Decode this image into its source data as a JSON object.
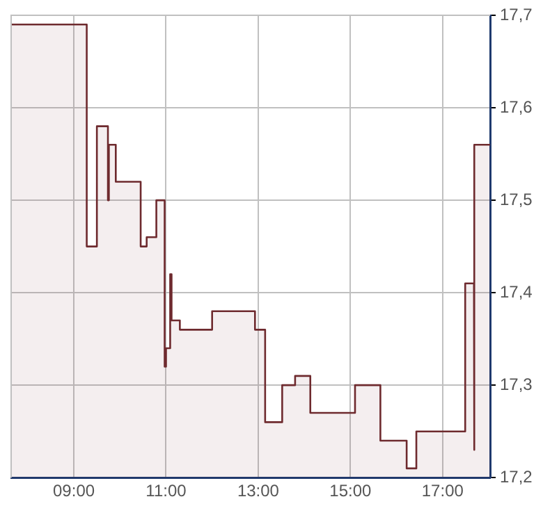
{
  "chart_data": {
    "type": "area",
    "x": [
      7.64,
      9.28,
      9.28,
      9.5,
      9.5,
      9.74,
      9.74,
      9.76,
      9.76,
      9.91,
      9.91,
      10.45,
      10.45,
      10.58,
      10.58,
      10.79,
      10.79,
      10.97,
      10.97,
      11.0,
      11.0,
      11.09,
      11.09,
      11.12,
      11.12,
      11.3,
      11.3,
      12.0,
      12.0,
      12.93,
      12.93,
      13.15,
      13.15,
      13.52,
      13.52,
      13.8,
      13.8,
      14.13,
      14.13,
      15.1,
      15.1,
      15.65,
      15.65,
      16.22,
      16.22,
      16.43,
      16.43,
      17.49,
      17.49,
      17.68,
      17.68,
      17.69,
      17.69,
      18.03
    ],
    "series": [
      {
        "color": "#6e2a2e",
        "values": [
          17.69,
          17.69,
          17.45,
          17.45,
          17.58,
          17.58,
          17.5,
          17.5,
          17.56,
          17.56,
          17.52,
          17.52,
          17.45,
          17.45,
          17.46,
          17.46,
          17.5,
          17.5,
          17.32,
          17.32,
          17.34,
          17.34,
          17.42,
          17.42,
          17.37,
          17.37,
          17.36,
          17.36,
          17.38,
          17.38,
          17.36,
          17.36,
          17.26,
          17.26,
          17.3,
          17.3,
          17.31,
          17.31,
          17.27,
          17.27,
          17.3,
          17.3,
          17.24,
          17.24,
          17.21,
          17.21,
          17.25,
          17.25,
          17.41,
          17.41,
          17.23,
          17.23,
          17.56,
          17.56
        ]
      }
    ],
    "xlim": [
      7.64,
      18.03
    ],
    "xticks": [
      {
        "value": 9,
        "label": "09:00"
      },
      {
        "value": 11,
        "label": "11:00"
      },
      {
        "value": 13,
        "label": "13:00"
      },
      {
        "value": 15,
        "label": "15:00"
      },
      {
        "value": 17,
        "label": "17:00"
      }
    ],
    "ylim": [
      17.2,
      17.7
    ],
    "yticks": [
      {
        "value": 17.2,
        "label": "17,2"
      },
      {
        "value": 17.3,
        "label": "17,3"
      },
      {
        "value": 17.4,
        "label": "17,4"
      },
      {
        "value": 17.5,
        "label": "17,5"
      },
      {
        "value": 17.6,
        "label": "17,6"
      },
      {
        "value": 17.7,
        "label": "17,7"
      }
    ],
    "grid": true
  }
}
